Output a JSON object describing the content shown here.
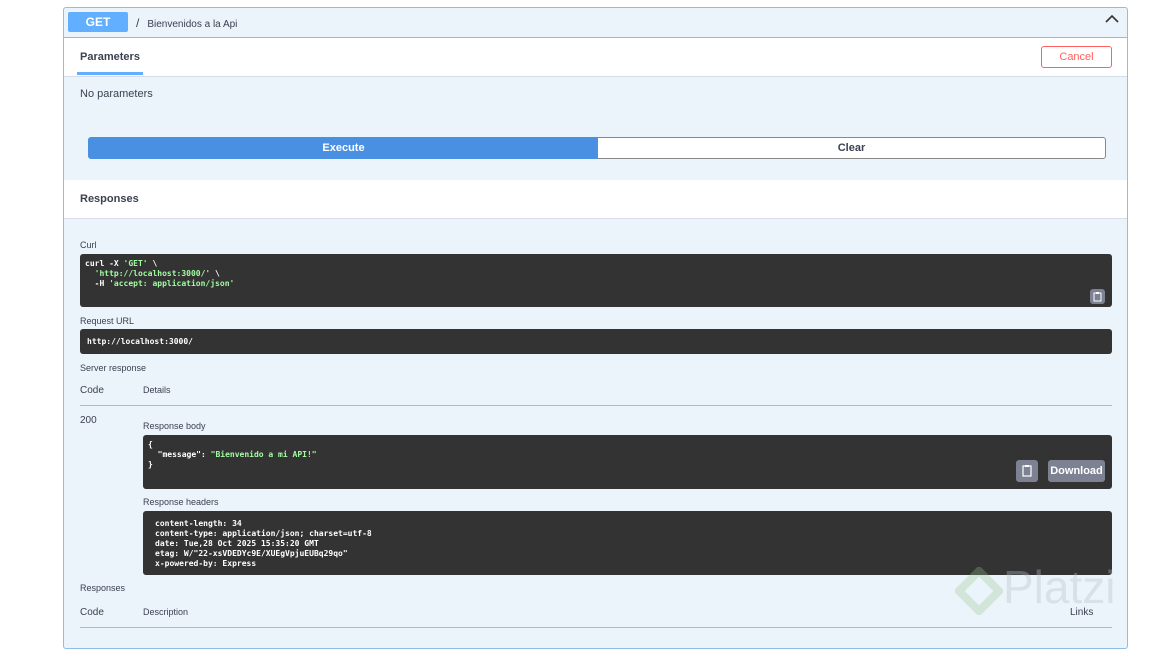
{
  "operation": {
    "method": "GET",
    "path_separator": "/",
    "summary": "Bienvenidos a la Api"
  },
  "tabs": {
    "parameters": "Parameters",
    "cancel": "Cancel",
    "no_params": "No parameters"
  },
  "actions": {
    "execute": "Execute",
    "clear": "Clear"
  },
  "responses_title": "Responses",
  "curl": {
    "label": "Curl",
    "line1_a": "curl -X ",
    "line1_b": "'GET'",
    "line1_c": " \\",
    "line2_a": "  ",
    "line2_b": "'http://localhost:3000/'",
    "line2_c": " \\",
    "line3_a": "  -H ",
    "line3_b": "'accept: application/json'"
  },
  "request_url": {
    "label": "Request URL",
    "value": "http://localhost:3000/"
  },
  "server_response": {
    "label": "Server response",
    "code_header": "Code",
    "details_header": "Details",
    "code": "200",
    "body_label": "Response body",
    "body_open": "{",
    "body_key": "  \"message\": ",
    "body_value": "\"Bienvenido a mi API!\"",
    "body_close": "}",
    "download": "Download",
    "headers_label": "Response headers",
    "headers": [
      "content-length: 34",
      "content-type: application/json; charset=utf-8",
      "date: Tue,28 Oct 2025 15:35:20 GMT",
      "etag: W/\"22-xsVDEDYc9E/XUEgVpjuEUBq29qo\"",
      "x-powered-by: Express"
    ]
  },
  "responses_table": {
    "label": "Responses",
    "code_header": "Code",
    "description_header": "Description",
    "links_header": "Links"
  },
  "watermark": "Platzi"
}
